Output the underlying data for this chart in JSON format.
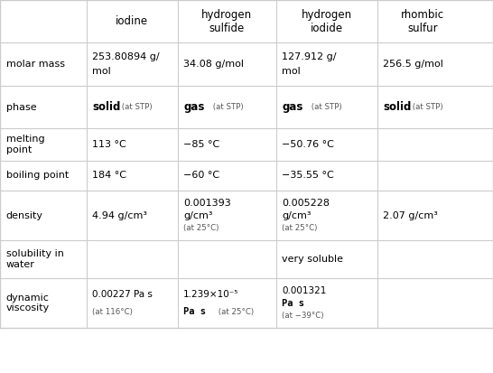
{
  "col_headers": [
    "",
    "iodine",
    "hydrogen\nsulfide",
    "hydrogen\niodide",
    "rhombic\nsulfur"
  ],
  "rows": [
    {
      "label": "molar mass",
      "cells": [
        {
          "text": "253.80894 g/\nmol",
          "style": "normal"
        },
        {
          "text": "34.08 g/mol",
          "style": "normal"
        },
        {
          "text": "127.912 g/\nmol",
          "style": "normal"
        },
        {
          "text": "256.5 g/mol",
          "style": "normal"
        }
      ]
    },
    {
      "label": "phase",
      "cells": [
        {
          "text": "solid",
          "suffix": " (at STP)",
          "style": "bold_prefix"
        },
        {
          "text": "gas",
          "suffix": " (at STP)",
          "style": "bold_prefix"
        },
        {
          "text": "gas",
          "suffix": " (at STP)",
          "style": "bold_prefix"
        },
        {
          "text": "solid",
          "suffix": " (at STP)",
          "style": "bold_prefix"
        }
      ]
    },
    {
      "label": "melting\npoint",
      "cells": [
        {
          "text": "113 °C",
          "style": "normal"
        },
        {
          "text": "−85 °C",
          "style": "normal"
        },
        {
          "text": "−50.76 °C",
          "style": "normal"
        },
        {
          "text": "",
          "style": "normal"
        }
      ]
    },
    {
      "label": "boiling point",
      "cells": [
        {
          "text": "184 °C",
          "style": "normal"
        },
        {
          "text": "−60 °C",
          "style": "normal"
        },
        {
          "text": "−35.55 °C",
          "style": "normal"
        },
        {
          "text": "",
          "style": "normal"
        }
      ]
    },
    {
      "label": "density",
      "cells": [
        {
          "text": "4.94 g/cm³",
          "style": "normal"
        },
        {
          "text": "0.001393\ng/cm³\n(at 25°C)",
          "style": "normal"
        },
        {
          "text": "0.005228\ng/cm³\n(at 25°C)",
          "style": "normal"
        },
        {
          "text": "2.07 g/cm³",
          "style": "normal"
        }
      ]
    },
    {
      "label": "solubility in\nwater",
      "cells": [
        {
          "text": "",
          "style": "normal"
        },
        {
          "text": "",
          "style": "normal"
        },
        {
          "text": "very soluble",
          "style": "normal"
        },
        {
          "text": "",
          "style": "normal"
        }
      ]
    },
    {
      "label": "dynamic\nviscosity",
      "cells": [
        {
          "text": "0.00227 Pa s\n(at 116°C)",
          "style": "visc1"
        },
        {
          "text": "1.239×10⁻⁵\nPa s  (at 25°C)",
          "style": "visc2"
        },
        {
          "text": "0.001321\nPa s\n(at −39°C)",
          "style": "visc3"
        },
        {
          "text": "",
          "style": "normal"
        }
      ]
    }
  ],
  "bg_color": "#ffffff",
  "header_bg": "#ffffff",
  "grid_color": "#cccccc",
  "text_color": "#000000",
  "small_text_color": "#555555"
}
